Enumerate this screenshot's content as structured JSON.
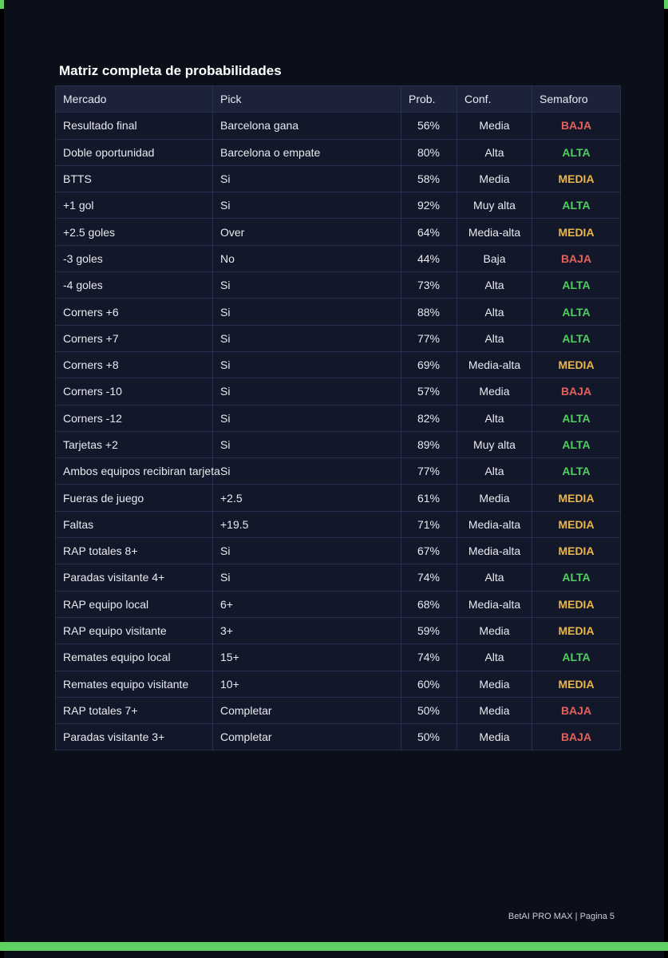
{
  "header": {
    "title": "Matriz completa de probabilidades"
  },
  "table": {
    "columns": [
      "Mercado",
      "Pick",
      "Prob.",
      "Conf.",
      "Semaforo"
    ],
    "rows": [
      [
        "Resultado final",
        "Barcelona gana",
        "56%",
        "Media",
        "BAJA"
      ],
      [
        "Doble oportunidad",
        "Barcelona o empate",
        "80%",
        "Alta",
        "ALTA"
      ],
      [
        "BTTS",
        "Si",
        "58%",
        "Media",
        "MEDIA"
      ],
      [
        "+1 gol",
        "Si",
        "92%",
        "Muy alta",
        "ALTA"
      ],
      [
        "+2.5 goles",
        "Over",
        "64%",
        "Media-alta",
        "MEDIA"
      ],
      [
        "-3 goles",
        "No",
        "44%",
        "Baja",
        "BAJA"
      ],
      [
        "-4 goles",
        "Si",
        "73%",
        "Alta",
        "ALTA"
      ],
      [
        "Corners +6",
        "Si",
        "88%",
        "Alta",
        "ALTA"
      ],
      [
        "Corners +7",
        "Si",
        "77%",
        "Alta",
        "ALTA"
      ],
      [
        "Corners +8",
        "Si",
        "69%",
        "Media-alta",
        "MEDIA"
      ],
      [
        "Corners -10",
        "Si",
        "57%",
        "Media",
        "BAJA"
      ],
      [
        "Corners -12",
        "Si",
        "82%",
        "Alta",
        "ALTA"
      ],
      [
        "Tarjetas +2",
        "Si",
        "89%",
        "Muy alta",
        "ALTA"
      ],
      [
        "Ambos equipos recibiran tarjeta",
        "Si",
        "77%",
        "Alta",
        "ALTA"
      ],
      [
        "Fueras de juego",
        "+2.5",
        "61%",
        "Media",
        "MEDIA"
      ],
      [
        "Faltas",
        "+19.5",
        "71%",
        "Media-alta",
        "MEDIA"
      ],
      [
        "RAP totales 8+",
        "Si",
        "67%",
        "Media-alta",
        "MEDIA"
      ],
      [
        "Paradas visitante 4+",
        "Si",
        "74%",
        "Alta",
        "ALTA"
      ],
      [
        "RAP equipo local",
        "6+",
        "68%",
        "Media-alta",
        "MEDIA"
      ],
      [
        "RAP equipo visitante",
        "3+",
        "59%",
        "Media",
        "MEDIA"
      ],
      [
        "Remates equipo local",
        "15+",
        "74%",
        "Alta",
        "ALTA"
      ],
      [
        "Remates equipo visitante",
        "10+",
        "60%",
        "Media",
        "MEDIA"
      ],
      [
        "RAP totales 7+",
        "Completar",
        "50%",
        "Media",
        "BAJA"
      ],
      [
        "Paradas visitante 3+",
        "Completar",
        "50%",
        "Media",
        "BAJA"
      ]
    ],
    "semaforo_colors": {
      "BAJA": "#e5605d",
      "ALTA": "#4fcf5f",
      "MEDIA": "#e8b64c"
    }
  },
  "footer": {
    "text": "BetAI PRO MAX | Pagina 5"
  }
}
